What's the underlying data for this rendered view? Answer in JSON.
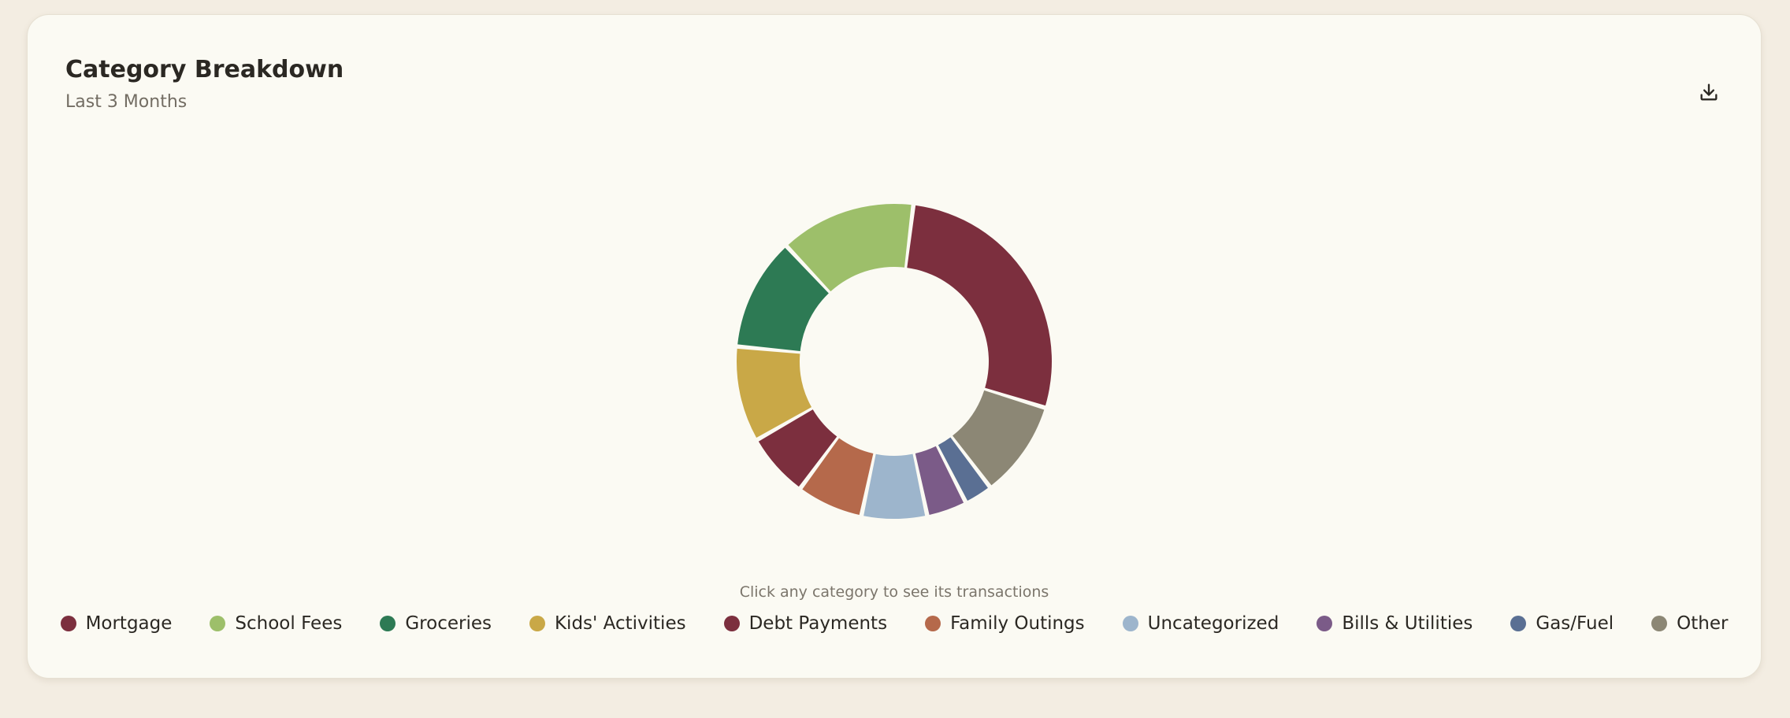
{
  "card": {
    "title": "Category Breakdown",
    "subtitle": "Last 3 Months",
    "download_icon": "download-icon",
    "hint": "Click any category to see its transactions"
  },
  "chart_data": {
    "type": "pie",
    "variant": "donut",
    "title": "Category Breakdown",
    "subtitle": "Last 3 Months",
    "legend_position": "bottom",
    "categories": [
      "Mortgage",
      "School Fees",
      "Groceries",
      "Kids' Activities",
      "Debt Payments",
      "Family Outings",
      "Uncategorized",
      "Bills & Utilities",
      "Gas/Fuel",
      "Other"
    ],
    "values": [
      27.0,
      13.5,
      11.2,
      9.5,
      6.4,
      6.6,
      6.5,
      4.0,
      2.8,
      9.6
    ],
    "colors": [
      "#7c2f3e",
      "#9dbf6a",
      "#2d7a54",
      "#c9a847",
      "#7c2f3e",
      "#b5694b",
      "#9db5cc",
      "#7b5b88",
      "#5a6f93",
      "#8c8775"
    ]
  }
}
